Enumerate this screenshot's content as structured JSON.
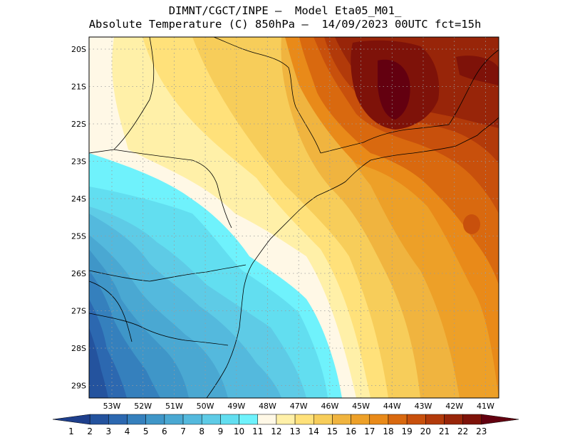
{
  "header": {
    "line1": "DIMNT/CGCT/INPE –  Model Eta05_M01_",
    "line2": "Absolute Temperature (C) 850hPa –  14/09/2023 00UTC fct=15h"
  },
  "axes": {
    "lat_labels": [
      "20S",
      "21S",
      "22S",
      "23S",
      "24S",
      "25S",
      "26S",
      "27S",
      "28S",
      "29S"
    ],
    "lon_labels": [
      "53W",
      "52W",
      "51W",
      "50W",
      "49W",
      "48W",
      "47W",
      "46W",
      "45W",
      "44W",
      "43W",
      "42W",
      "41W"
    ]
  },
  "colorbar": {
    "labels": [
      "1",
      "2",
      "3",
      "4",
      "5",
      "6",
      "7",
      "8",
      "9",
      "10",
      "11",
      "12",
      "13",
      "14",
      "15",
      "16",
      "17",
      "18",
      "19",
      "20",
      "21",
      "22",
      "23"
    ],
    "colors": [
      "#1e3f8c",
      "#24539e",
      "#2c68b0",
      "#3580bd",
      "#3f96c8",
      "#4aa8d2",
      "#54b9dd",
      "#5ecbe6",
      "#62def0",
      "#6ff2fc",
      "#fff8e6",
      "#fff0a8",
      "#ffe17a",
      "#f7cd5a",
      "#f0b43f",
      "#eda028",
      "#e98a19",
      "#d9690f",
      "#c8500c",
      "#b23a0a",
      "#982509",
      "#7e1209",
      "#630010"
    ]
  },
  "map": {
    "grid": "dotted",
    "fields": [
      {
        "level": "23",
        "color": "#630010"
      },
      {
        "level": "11",
        "color": "#fff8e6"
      },
      {
        "level": "6",
        "color": "#4aa8d2"
      },
      {
        "level": "2",
        "color": "#24539e"
      }
    ]
  }
}
